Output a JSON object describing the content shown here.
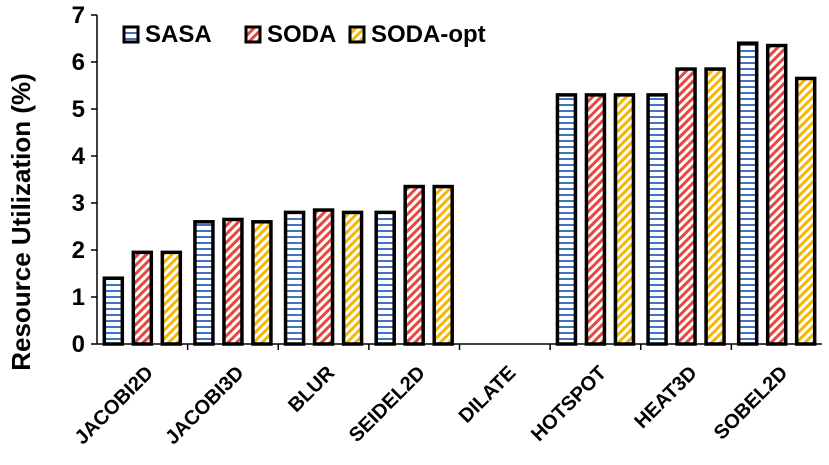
{
  "chart_data": {
    "type": "bar",
    "title": "",
    "xlabel": "",
    "ylabel": "Resource Utilization (%)",
    "ylim": [
      0,
      7
    ],
    "yticks": [
      0,
      1,
      2,
      3,
      4,
      5,
      6,
      7
    ],
    "grid": false,
    "legend_position": "top-left",
    "categories": [
      "JACOBI2D",
      "JACOBI3D",
      "BLUR",
      "SEIDEL2D",
      "DILATE",
      "HOTSPOT",
      "HEAT3D",
      "SOBEL2D"
    ],
    "series": [
      {
        "name": "SASA",
        "pattern": "horizontal-stripes",
        "color": "#4472c4",
        "values": [
          1.4,
          2.6,
          2.8,
          2.8,
          null,
          5.3,
          5.3,
          6.4
        ]
      },
      {
        "name": "SODA",
        "pattern": "diagonal-stripes",
        "color": "#e8473f",
        "values": [
          1.95,
          2.65,
          2.85,
          3.35,
          null,
          5.3,
          5.85,
          6.35
        ]
      },
      {
        "name": "SODA-opt",
        "pattern": "diagonal-stripes",
        "color": "#f5b800",
        "values": [
          1.95,
          2.6,
          2.8,
          3.35,
          null,
          5.3,
          5.85,
          5.65
        ]
      }
    ]
  }
}
